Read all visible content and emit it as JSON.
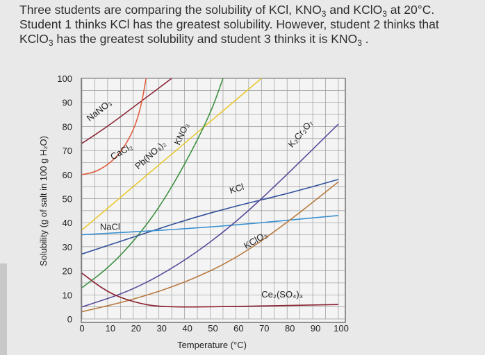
{
  "question": {
    "line1_a": "Three students are comparing the solubility of KCl, KNO",
    "line1_b": " and KClO",
    "line1_c": " at 20°C.",
    "line2": "Student 1 thinks KCl has the greatest solubility. However, student 2 thinks that",
    "line3_a": "KClO",
    "line3_b": " has the greatest solubility and student 3 thinks it is KNO",
    "line3_c": " .",
    "sub3": "3"
  },
  "chart_data": {
    "type": "line",
    "xlabel": "Temperature (°C)",
    "ylabel": "Solubility (g of salt in 100 g H₂O)",
    "xlim": [
      0,
      100
    ],
    "ylim": [
      0,
      100
    ],
    "xticks": [
      0,
      10,
      20,
      30,
      40,
      50,
      60,
      70,
      80,
      90,
      100
    ],
    "yticks": [
      0,
      10,
      20,
      30,
      40,
      50,
      60,
      70,
      80,
      90,
      100
    ],
    "grid": true,
    "series": [
      {
        "name": "NaNO₃",
        "color": "#8e2a3a",
        "x": [
          0,
          10,
          20,
          30,
          35
        ],
        "y": [
          73,
          80,
          88,
          96,
          100
        ]
      },
      {
        "name": "CaCl₂",
        "color": "#e06040",
        "x": [
          0,
          5,
          10,
          15,
          20,
          23,
          25
        ],
        "y": [
          60,
          61,
          64,
          69,
          78,
          88,
          100
        ]
      },
      {
        "name": "Pb(NO₃)₂",
        "color": "#e8c830",
        "x": [
          0,
          10,
          20,
          30,
          40,
          50,
          60,
          70
        ],
        "y": [
          37,
          46,
          55,
          64,
          73,
          82,
          91,
          100
        ]
      },
      {
        "name": "KNO₃",
        "color": "#3c9040",
        "x": [
          0,
          10,
          20,
          30,
          40,
          50,
          55
        ],
        "y": [
          13,
          21,
          32,
          46,
          64,
          85,
          100
        ]
      },
      {
        "name": "KCl",
        "color": "#30509a",
        "x": [
          0,
          20,
          40,
          60,
          80,
          100
        ],
        "y": [
          27,
          34,
          41,
          47,
          52,
          58
        ]
      },
      {
        "name": "NaCl",
        "color": "#3a90d0",
        "x": [
          0,
          50,
          100
        ],
        "y": [
          35,
          38,
          43
        ]
      },
      {
        "name": "K₂Cr₂O₇",
        "color": "#5a4a9a",
        "x": [
          0,
          20,
          40,
          60,
          80,
          100
        ],
        "y": [
          5,
          12,
          24,
          40,
          60,
          81
        ]
      },
      {
        "name": "KClO₃",
        "color": "#b87a40",
        "x": [
          0,
          20,
          40,
          60,
          80,
          100
        ],
        "y": [
          3,
          8,
          15,
          25,
          40,
          57
        ]
      },
      {
        "name": "Ce₂(SO₄)₃",
        "color": "#8a2030",
        "x": [
          0,
          10,
          20,
          30,
          50,
          100
        ],
        "y": [
          19,
          11,
          7,
          5,
          5,
          6
        ]
      }
    ]
  }
}
